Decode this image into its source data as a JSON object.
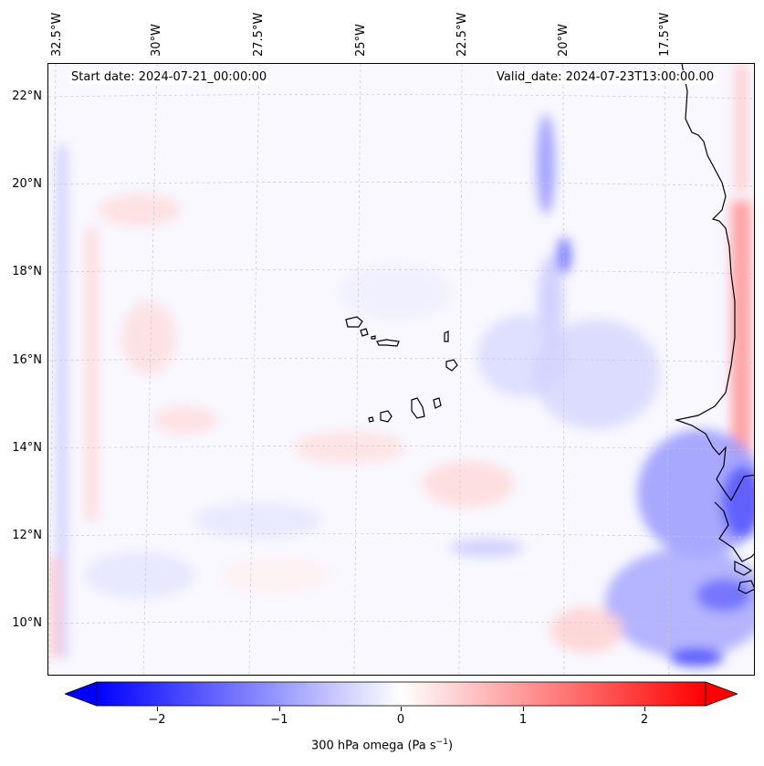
{
  "map": {
    "start_label": "Start date: 2024-07-21_00:00:00",
    "valid_label": "Valid_date: 2024-07-23T13:00:00.00",
    "longitude_labels": [
      "32.5°W",
      "30°W",
      "27.5°W",
      "25°W",
      "22.5°W",
      "20°W",
      "17.5°W"
    ],
    "latitude_labels": [
      "22°N",
      "20°N",
      "18°N",
      "16°N",
      "14°N",
      "12°N",
      "10°N"
    ],
    "coastline_color": "#000000",
    "gridline_color": "#c8c8c8",
    "field": "300 hPa omega"
  },
  "colorbar": {
    "ticks": [
      {
        "value": -2,
        "label": "−2"
      },
      {
        "value": -1,
        "label": "−1"
      },
      {
        "value": 0,
        "label": "0"
      },
      {
        "value": 1,
        "label": "1"
      },
      {
        "value": 2,
        "label": "2"
      }
    ],
    "vmin": -2.5,
    "vmax": 2.5,
    "extend": "both",
    "cmap": "bwr",
    "min_color": "#0000ff",
    "mid_color": "#ffffff",
    "max_color": "#ff0000",
    "label_prefix": "300 hPa omega (Pa s",
    "label_exponent": "−1",
    "label_suffix": ")"
  }
}
